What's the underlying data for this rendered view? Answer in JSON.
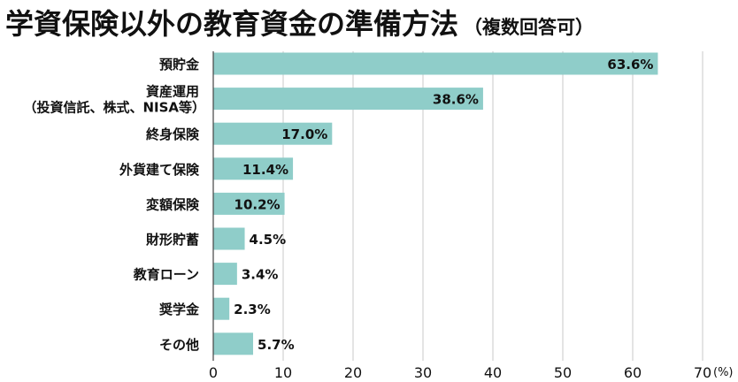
{
  "chart_data": {
    "type": "bar",
    "orientation": "horizontal",
    "title": "学資保険以外の教育資金の準備方法",
    "subtitle": "（複数回答可）",
    "categories": [
      [
        "預貯金"
      ],
      [
        "資産運用",
        "（投資信託、株式、NISA等）"
      ],
      [
        "終身保険"
      ],
      [
        "外貨建て保険"
      ],
      [
        "変額保険"
      ],
      [
        "財形貯蓄"
      ],
      [
        "教育ローン"
      ],
      [
        "奨学金"
      ],
      [
        "その他"
      ]
    ],
    "values": [
      63.6,
      38.6,
      17.0,
      11.4,
      10.2,
      4.5,
      3.4,
      2.3,
      5.7
    ],
    "value_labels": [
      "63.6%",
      "38.6%",
      "17.0%",
      "11.4%",
      "10.2%",
      "4.5%",
      "3.4%",
      "2.3%",
      "5.7%"
    ],
    "xlim": [
      0,
      70
    ],
    "xticks": [
      "0",
      "10",
      "20",
      "30",
      "40",
      "50",
      "60",
      "70"
    ],
    "x_unit": "(%)",
    "grid": true,
    "bar_color": "#8fcdc9",
    "grid_color": "#c8c8c8",
    "axis_color": "#444444"
  }
}
